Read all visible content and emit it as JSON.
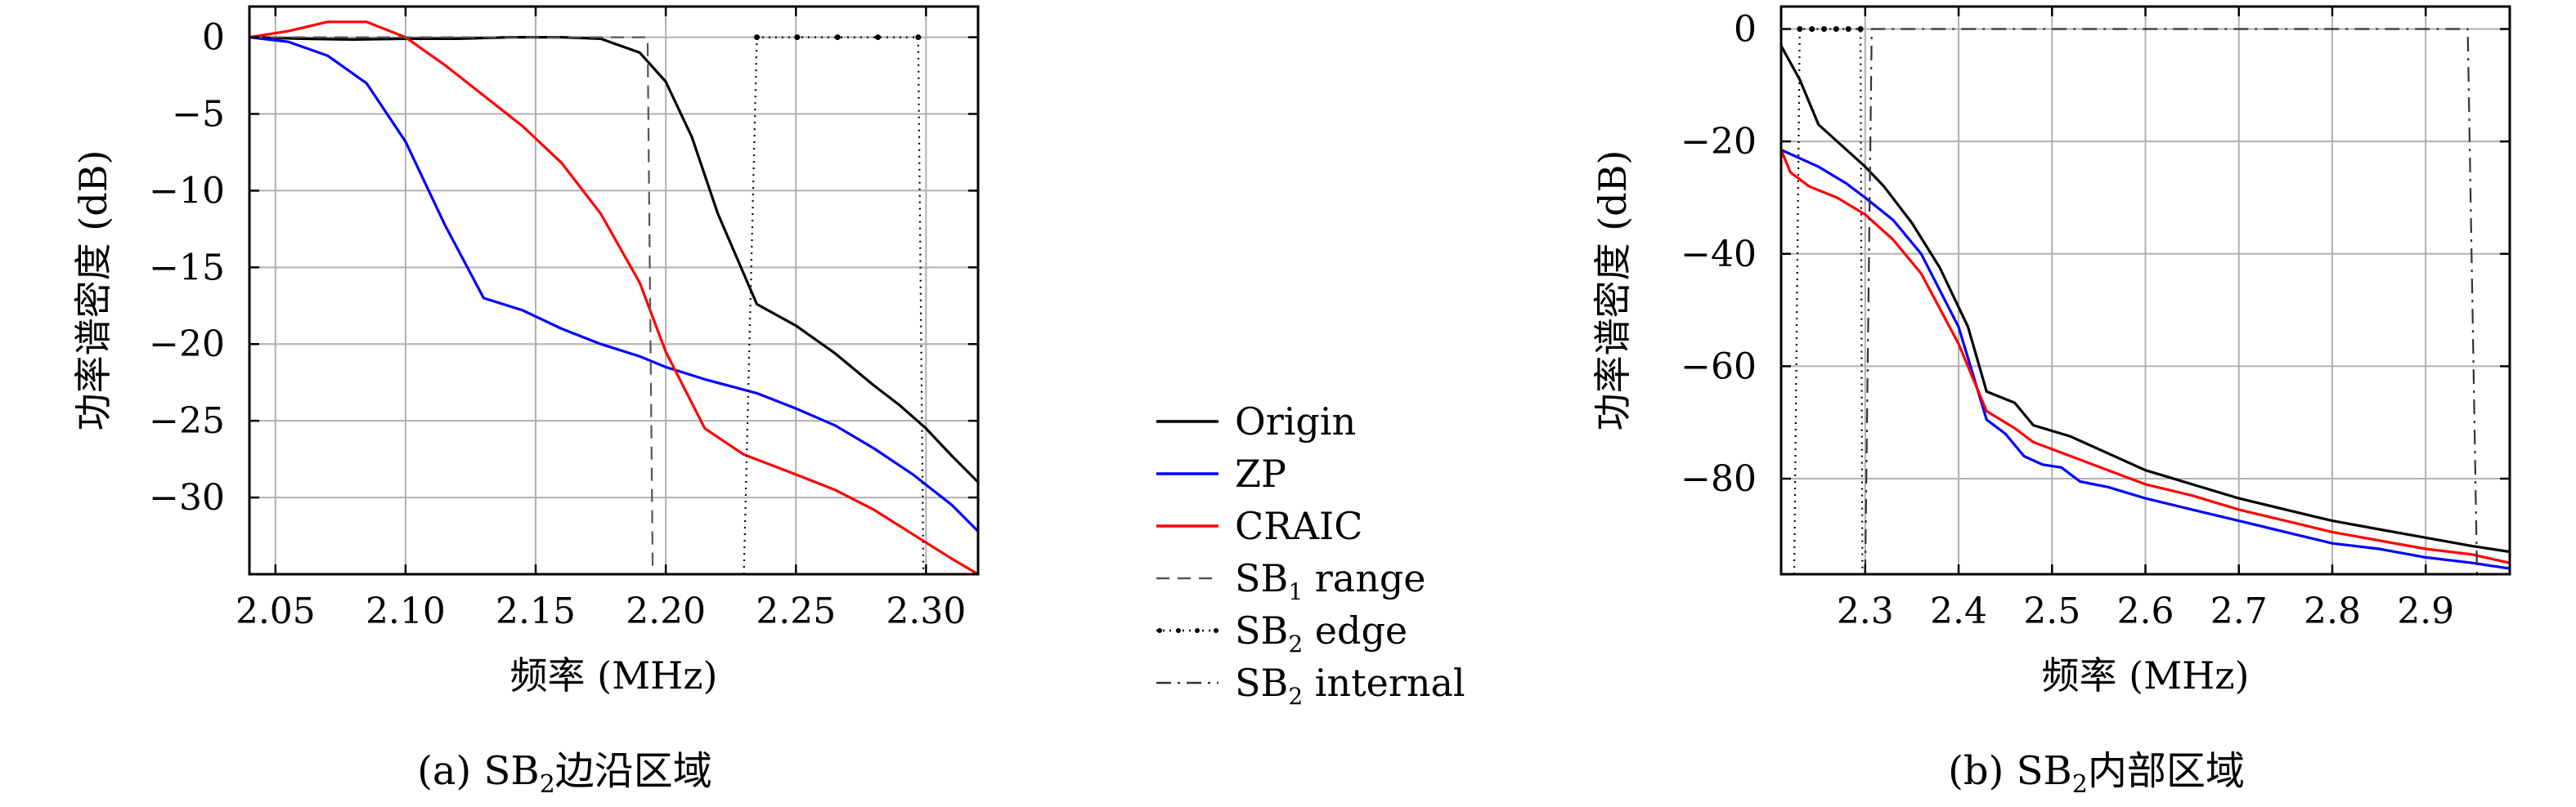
{
  "charts": [
    {
      "id": "a",
      "type": "line",
      "xlabel": "频率 (MHz)",
      "ylabel": "功率谱密度 (dB)",
      "caption_prefix": "(a) SB",
      "caption_sub": "2",
      "caption_suffix": "边沿区域",
      "xlim": [
        2.04,
        2.32
      ],
      "ylim": [
        -35,
        2
      ],
      "xticks": [
        2.05,
        2.1,
        2.15,
        2.2,
        2.25,
        2.3
      ],
      "xticklabels": [
        "2.05",
        "2.10",
        "2.15",
        "2.20",
        "2.25",
        "2.30"
      ],
      "yticks": [
        0,
        -5,
        -10,
        -15,
        -20,
        -25,
        -30
      ],
      "yticklabels": [
        "0",
        "−5",
        "−10",
        "−15",
        "−20",
        "−25",
        "−30"
      ],
      "grid": true,
      "chart_data": {
        "type": "line",
        "series": [
          {
            "name": "Origin",
            "color": "#000000",
            "style": "solid",
            "x": [
              2.04,
              2.06,
              2.08,
              2.1,
              2.12,
              2.14,
              2.16,
              2.175,
              2.19,
              2.2,
              2.21,
              2.22,
              2.235,
              2.25,
              2.265,
              2.28,
              2.29,
              2.3,
              2.31,
              2.32
            ],
            "y": [
              0.0,
              -0.1,
              -0.15,
              -0.1,
              -0.1,
              0.0,
              0.0,
              -0.1,
              -1.0,
              -2.9,
              -6.5,
              -11.5,
              -17.4,
              -18.8,
              -20.6,
              -22.7,
              -24.0,
              -25.5,
              -27.3,
              -29.0
            ]
          },
          {
            "name": "ZP",
            "color": "#0000ff",
            "style": "solid",
            "x": [
              2.04,
              2.055,
              2.07,
              2.085,
              2.1,
              2.115,
              2.13,
              2.145,
              2.16,
              2.175,
              2.19,
              2.2,
              2.215,
              2.235,
              2.25,
              2.265,
              2.28,
              2.295,
              2.31,
              2.32
            ],
            "y": [
              0.0,
              -0.3,
              -1.2,
              -3.0,
              -6.8,
              -12.2,
              -17.0,
              -17.8,
              -19.0,
              -20.0,
              -20.8,
              -21.5,
              -22.3,
              -23.2,
              -24.2,
              -25.3,
              -26.8,
              -28.5,
              -30.5,
              -32.2
            ]
          },
          {
            "name": "CRAIC",
            "color": "#ff0000",
            "style": "solid",
            "x": [
              2.04,
              2.055,
              2.07,
              2.085,
              2.1,
              2.115,
              2.13,
              2.145,
              2.16,
              2.175,
              2.19,
              2.2,
              2.215,
              2.23,
              2.25,
              2.265,
              2.28,
              2.295,
              2.31,
              2.32
            ],
            "y": [
              0.0,
              0.4,
              1.0,
              1.0,
              0.0,
              -1.8,
              -3.8,
              -5.8,
              -8.2,
              -11.5,
              -16.0,
              -20.5,
              -25.5,
              -27.2,
              -28.5,
              -29.5,
              -30.8,
              -32.4,
              -34.0,
              -35.0
            ]
          },
          {
            "name": "SB₁ range",
            "color": "#555555",
            "style": "dashed",
            "x": [
              2.04,
              2.193,
              2.193,
              2.195,
              2.195
            ],
            "y": [
              0,
              0,
              0,
              -35,
              -35
            ]
          },
          {
            "name": "SB₂ edge",
            "color": "#000000",
            "style": "dotted",
            "x": [
              2.23,
              2.235,
              2.297,
              2.299
            ],
            "y": [
              -35,
              0,
              0,
              -35
            ]
          }
        ]
      }
    },
    {
      "id": "b",
      "type": "line",
      "xlabel": "频率 (MHz)",
      "ylabel": "功率谱密度 (dB)",
      "caption_prefix": "(b) SB",
      "caption_sub": "2",
      "caption_suffix": "内部区域",
      "xlim": [
        2.21,
        2.99
      ],
      "ylim": [
        -97,
        4
      ],
      "xticks": [
        2.3,
        2.4,
        2.5,
        2.6,
        2.7,
        2.8,
        2.9
      ],
      "xticklabels": [
        "2.3",
        "2.4",
        "2.5",
        "2.6",
        "2.7",
        "2.8",
        "2.9"
      ],
      "yticks": [
        0,
        -20,
        -40,
        -60,
        -80
      ],
      "yticklabels": [
        "0",
        "−20",
        "−40",
        "−60",
        "−80"
      ],
      "grid": true,
      "chart_data": {
        "type": "line",
        "series": [
          {
            "name": "Origin",
            "color": "#000000",
            "style": "solid",
            "x": [
              2.21,
              2.23,
              2.25,
              2.28,
              2.3,
              2.32,
              2.35,
              2.38,
              2.41,
              2.43,
              2.46,
              2.48,
              2.52,
              2.56,
              2.6,
              2.65,
              2.7,
              2.75,
              2.8,
              2.85,
              2.9,
              2.95,
              2.99
            ],
            "y": [
              -3,
              -9,
              -17,
              -21.5,
              -24.5,
              -28,
              -34.5,
              -42.5,
              -53,
              -64.5,
              -66.5,
              -70.5,
              -72.5,
              -75.5,
              -78.5,
              -81,
              -83.5,
              -85.5,
              -87.5,
              -89,
              -90.5,
              -92,
              -93
            ]
          },
          {
            "name": "ZP",
            "color": "#0000ff",
            "style": "solid",
            "x": [
              2.21,
              2.25,
              2.28,
              2.3,
              2.33,
              2.36,
              2.4,
              2.43,
              2.45,
              2.47,
              2.49,
              2.51,
              2.53,
              2.56,
              2.6,
              2.65,
              2.7,
              2.75,
              2.8,
              2.85,
              2.9,
              2.95,
              2.99
            ],
            "y": [
              -21.5,
              -24.5,
              -27.5,
              -30,
              -34,
              -40,
              -53,
              -69.5,
              -72,
              -76,
              -77.5,
              -78,
              -80.5,
              -81.5,
              -83.5,
              -85.5,
              -87.5,
              -89.5,
              -91.5,
              -92.5,
              -94,
              -95,
              -96
            ]
          },
          {
            "name": "CRAIC",
            "color": "#ff0000",
            "style": "solid",
            "x": [
              2.21,
              2.22,
              2.24,
              2.27,
              2.3,
              2.33,
              2.36,
              2.4,
              2.43,
              2.46,
              2.48,
              2.52,
              2.56,
              2.6,
              2.65,
              2.7,
              2.75,
              2.8,
              2.85,
              2.9,
              2.95,
              2.99
            ],
            "y": [
              -21.5,
              -25.5,
              -28,
              -30,
              -33,
              -37.5,
              -43.5,
              -56,
              -68,
              -71,
              -73.5,
              -76,
              -78.5,
              -81,
              -83,
              -85.5,
              -87.5,
              -89.5,
              -91,
              -92.5,
              -93.5,
              -95
            ]
          },
          {
            "name": "SB₂ edge",
            "color": "#000000",
            "style": "dotted",
            "x": [
              2.224,
              2.23,
              2.295,
              2.297
            ],
            "y": [
              -97,
              0,
              0,
              -97
            ]
          },
          {
            "name": "SB₂ internal",
            "color": "#333333",
            "style": "dashdot",
            "x": [
              2.3,
              2.307,
              2.945,
              2.955
            ],
            "y": [
              -97,
              0,
              0,
              -97
            ]
          }
        ]
      }
    }
  ],
  "legend": [
    {
      "label": "Origin",
      "sub": "",
      "label_tail": "",
      "color": "#000000",
      "style": "solid"
    },
    {
      "label": "ZP",
      "sub": "",
      "label_tail": "",
      "color": "#0000ff",
      "style": "solid"
    },
    {
      "label": "CRAIC",
      "sub": "",
      "label_tail": "",
      "color": "#ff0000",
      "style": "solid"
    },
    {
      "label": "SB",
      "sub": "1",
      "label_tail": " range",
      "color": "#555555",
      "style": "dashed"
    },
    {
      "label": "SB",
      "sub": "2",
      "label_tail": " edge",
      "color": "#000000",
      "style": "dotted"
    },
    {
      "label": "SB",
      "sub": "2",
      "label_tail": " internal",
      "color": "#333333",
      "style": "dashdot"
    }
  ]
}
